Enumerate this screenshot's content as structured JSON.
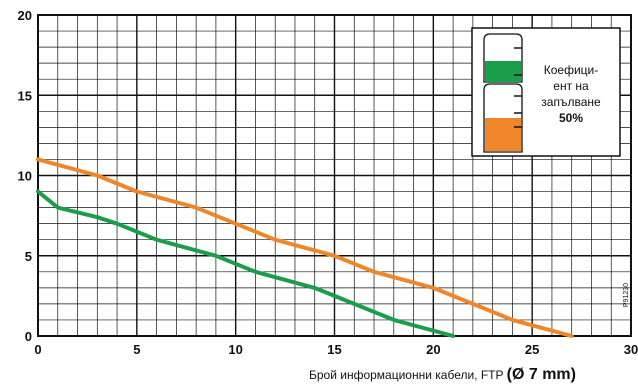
{
  "chart_data": {
    "type": "line",
    "xlabel": "Брой информационни кабели, FTP",
    "xlabel_unit": "(Ø 7 mm)",
    "ylabel": "",
    "xlim": [
      0,
      30
    ],
    "ylim": [
      0,
      20
    ],
    "x_ticks": [
      "0",
      "5",
      "10",
      "15",
      "20",
      "25",
      "30"
    ],
    "y_ticks": [
      "0",
      "5",
      "10",
      "15",
      "20"
    ],
    "grid": true,
    "x_minor_step": 1,
    "y_minor_step": 1,
    "series": [
      {
        "color": "#f0862a",
        "points": [
          [
            0,
            11
          ],
          [
            3,
            10
          ],
          [
            5,
            9
          ],
          [
            8,
            8
          ],
          [
            10,
            7
          ],
          [
            12,
            6
          ],
          [
            15,
            5
          ],
          [
            17,
            4
          ],
          [
            20,
            3
          ],
          [
            22,
            2
          ],
          [
            24,
            1
          ],
          [
            27,
            0
          ]
        ]
      },
      {
        "color": "#1a9e4a",
        "points": [
          [
            0,
            9
          ],
          [
            1,
            8
          ],
          [
            3,
            7.4
          ],
          [
            4,
            7
          ],
          [
            6,
            6
          ],
          [
            9,
            5
          ],
          [
            11,
            4
          ],
          [
            14,
            3
          ],
          [
            16,
            2
          ],
          [
            18,
            1
          ],
          [
            21,
            0
          ]
        ]
      }
    ],
    "legend": {
      "placement": "top-right",
      "lines": [
        "Коефици-",
        "ент на",
        "запълване"
      ],
      "percent": "50%",
      "icon_colors": {
        "top": "#1a9e4a",
        "bottom": "#f0862a"
      }
    },
    "code_label": "P91230"
  }
}
